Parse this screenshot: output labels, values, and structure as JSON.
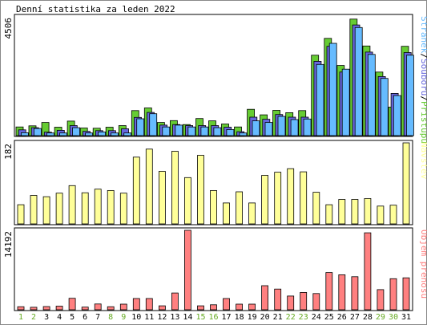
{
  "chart_data": {
    "type": "bar",
    "title": "Denní statistika za leden 2022",
    "categories": [
      "1",
      "2",
      "3",
      "4",
      "5",
      "6",
      "7",
      "8",
      "9",
      "10",
      "11",
      "12",
      "13",
      "14",
      "15",
      "16",
      "17",
      "18",
      "19",
      "20",
      "21",
      "22",
      "23",
      "24",
      "25",
      "26",
      "27",
      "28",
      "29",
      "30",
      "31"
    ],
    "weekend_days": [
      "1",
      "2",
      "8",
      "9",
      "15",
      "16",
      "22",
      "23",
      "29",
      "30"
    ],
    "colors": {
      "pristupu": "#66cc33",
      "souboru": "#6666dd",
      "stranek": "#66bbff",
      "navstev": "#ffff99",
      "objem": "#ff8080",
      "weekday_label": "#000000",
      "weekend_label": "#66aa22"
    },
    "panels": [
      {
        "id": "top",
        "ymax_label": "4506",
        "ymax": 4506,
        "series": [
          {
            "name": "Přístupů",
            "key": "pristupu",
            "values": [
              330,
              370,
              500,
              320,
              550,
              290,
              280,
              320,
              380,
              950,
              1050,
              500,
              570,
              420,
              650,
              560,
              440,
              330,
              1000,
              790,
              960,
              870,
              950,
              3050,
              3690,
              2660,
              4420,
              3400,
              2410,
              1080,
              3390
            ]
          },
          {
            "name": "Souborů",
            "key": "souboru",
            "values": [
              220,
              300,
              130,
              200,
              380,
              160,
              190,
              190,
              260,
              690,
              880,
              400,
              420,
              380,
              380,
              380,
              320,
              150,
              700,
              620,
              800,
              700,
              700,
              2820,
              3390,
              2410,
              4200,
              3170,
              2240,
              1600,
              3150
            ]
          },
          {
            "name": "Stránek",
            "key": "stranek",
            "values": [
              110,
              270,
              100,
              100,
              300,
              100,
              140,
              100,
              100,
              640,
              830,
              330,
              400,
              330,
              330,
              300,
              230,
              100,
              560,
              500,
              730,
              610,
              630,
              2700,
              3500,
              2520,
              4100,
              3080,
              2170,
              1520,
              3050
            ]
          }
        ],
        "axis_title": {
          "parts": [
            {
              "text": "Stránek",
              "key": "stranek"
            },
            {
              "text": "/",
              "key": null
            },
            {
              "text": "Souborů",
              "key": "souboru"
            },
            {
              "text": "/",
              "key": null
            },
            {
              "text": "Přístupů",
              "key": "pristupu"
            }
          ]
        }
      },
      {
        "id": "mid",
        "ymax_label": "182",
        "ymax": 182,
        "series": [
          {
            "name": "Návštěv",
            "key": "navstev",
            "values": [
              43,
              64,
              61,
              69,
              86,
              70,
              78,
              75,
              69,
              150,
              168,
              118,
              163,
              104,
              154,
              75,
              47,
              72,
              47,
              109,
              116,
              124,
              117,
              71,
              43,
              55,
              55,
              57,
              40,
              42,
              182
            ]
          }
        ],
        "axis_title": {
          "parts": [
            {
              "text": "Návštěv",
              "key": "navstev"
            }
          ]
        }
      },
      {
        "id": "bot",
        "ymax_label": "14192",
        "ymax": 14192,
        "series": [
          {
            "name": "Objem přenosu",
            "key": "objem",
            "values": [
              550,
              450,
              580,
              650,
              2050,
              480,
              1030,
              550,
              1000,
              2000,
              2000,
              700,
              3000,
              14192,
              700,
              890,
              2000,
              1000,
              1000,
              4300,
              3700,
              2450,
              3100,
              2900,
              6650,
              6250,
              5900,
              13750,
              3600,
              5550,
              5700
            ]
          }
        ],
        "axis_title": {
          "parts": [
            {
              "text": "Objem přenosu",
              "key": "objem"
            }
          ]
        }
      }
    ]
  }
}
